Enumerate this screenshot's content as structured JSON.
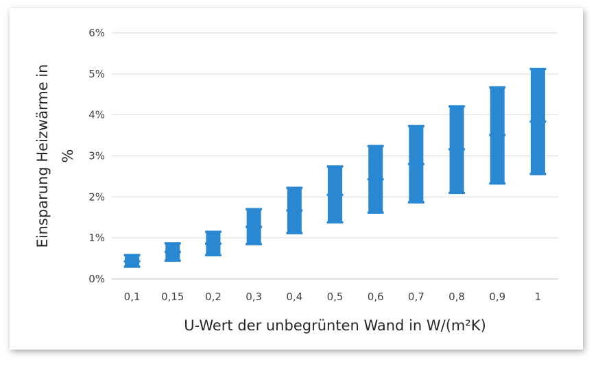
{
  "chart_data": {
    "type": "bar",
    "subtype": "floating-range-with-midpoint",
    "title": "",
    "xlabel": "U-Wert der unbegrünten Wand in W/(m²K)",
    "ylabel_lines": [
      "Einsparung Heizwärme in",
      "%"
    ],
    "categories": [
      "0,1",
      "0,15",
      "0,2",
      "0,3",
      "0,4",
      "0,5",
      "0,6",
      "0,7",
      "0,8",
      "0,9",
      "1"
    ],
    "series": [
      {
        "low": [
          0.3,
          0.45,
          0.58,
          0.85,
          1.12,
          1.38,
          1.62,
          1.87,
          2.1,
          2.33,
          2.56
        ]
      },
      {
        "mid": [
          0.43,
          0.66,
          0.86,
          1.27,
          1.67,
          2.05,
          2.43,
          2.8,
          3.16,
          3.51,
          3.84
        ]
      },
      {
        "high": [
          0.58,
          0.87,
          1.15,
          1.7,
          2.22,
          2.74,
          3.24,
          3.73,
          4.21,
          4.67,
          5.12
        ]
      }
    ],
    "ylim": [
      0,
      6
    ],
    "yticks": [
      0,
      1,
      2,
      3,
      4,
      5,
      6
    ],
    "ytick_labels": [
      "0%",
      "1%",
      "2%",
      "3%",
      "4%",
      "5%",
      "6%"
    ],
    "grid": true,
    "legend": "none",
    "colors": {
      "bar": "#2a88d2",
      "grid": "#d9d9d9",
      "axis": "#bfbfbf"
    }
  }
}
